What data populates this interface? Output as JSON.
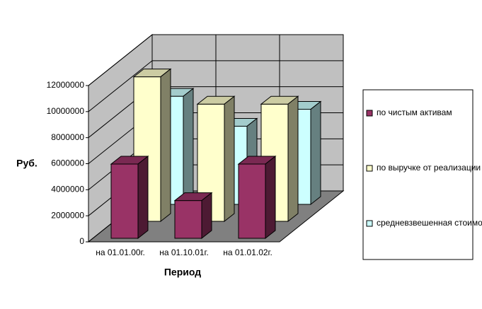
{
  "chart_data": {
    "type": "bar3d",
    "y_label": "Руб.",
    "x_label": "Период",
    "categories": [
      "на 01.01.00г.",
      "на 01.10.01г.",
      "на 01.01.02г."
    ],
    "series": [
      {
        "name": "по чистым активам",
        "color": "#993366",
        "values": [
          5700000,
          2900000,
          5700000
        ]
      },
      {
        "name": "по выручке от реализации",
        "color": "#ffffcc",
        "values": [
          11100000,
          9000000,
          9000000
        ]
      },
      {
        "name": "средневзвешенная стоимость",
        "color": "#ccffff",
        "values": [
          8300000,
          6000000,
          7300000
        ]
      }
    ],
    "ylim": [
      0,
      12000000
    ],
    "yticks": [
      0,
      2000000,
      4000000,
      6000000,
      8000000,
      10000000,
      12000000
    ],
    "grid": true,
    "legend": "right"
  }
}
